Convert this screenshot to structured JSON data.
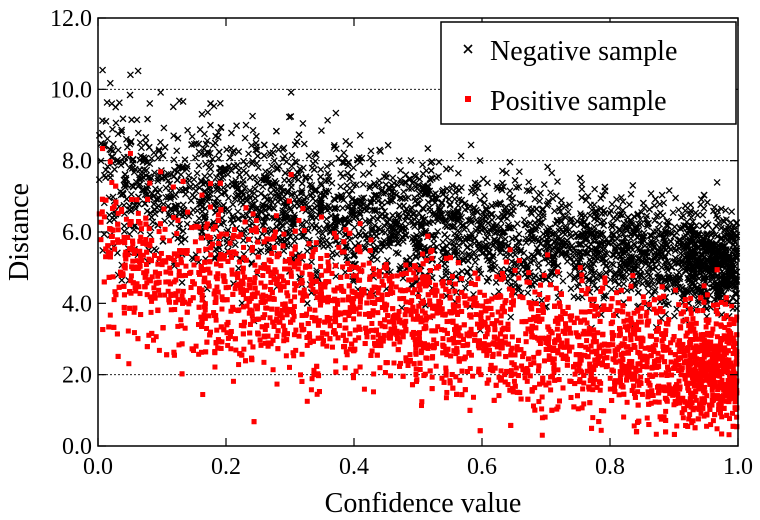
{
  "chart_data": {
    "type": "scatter",
    "title": "",
    "xlabel": "Confidence value",
    "ylabel": "Distance",
    "xlim": [
      0.0,
      1.0
    ],
    "ylim": [
      0.0,
      12.0
    ],
    "x_ticks": [
      "0.0",
      "0.2",
      "0.4",
      "0.6",
      "0.8",
      "1.0"
    ],
    "y_ticks": [
      "0.0",
      "2.0",
      "4.0",
      "6.0",
      "8.0",
      "10.0",
      "12.0"
    ],
    "gridlines_y": [
      2.0,
      8.0,
      10.0
    ],
    "legend_position": "top-right",
    "series": [
      {
        "name": "Negative sample",
        "marker": "x",
        "color": "#000000",
        "trend": {
          "x": [
            0.0,
            0.2,
            0.4,
            0.6,
            0.8,
            1.0
          ],
          "y_center": [
            7.5,
            7.0,
            6.4,
            5.9,
            5.5,
            5.1
          ],
          "y_spread": [
            1.1,
            1.0,
            0.95,
            0.85,
            0.75,
            0.6
          ]
        },
        "approx_points": 9000
      },
      {
        "name": "Positive sample",
        "marker": "square",
        "color": "#ff0000",
        "trend": {
          "x": [
            0.0,
            0.2,
            0.4,
            0.6,
            0.8,
            1.0
          ],
          "y_center": [
            5.3,
            4.5,
            3.8,
            3.2,
            2.6,
            2.1
          ],
          "y_spread": [
            1.1,
            1.1,
            1.0,
            0.95,
            0.9,
            0.75
          ]
        },
        "approx_points": 9000
      }
    ]
  }
}
